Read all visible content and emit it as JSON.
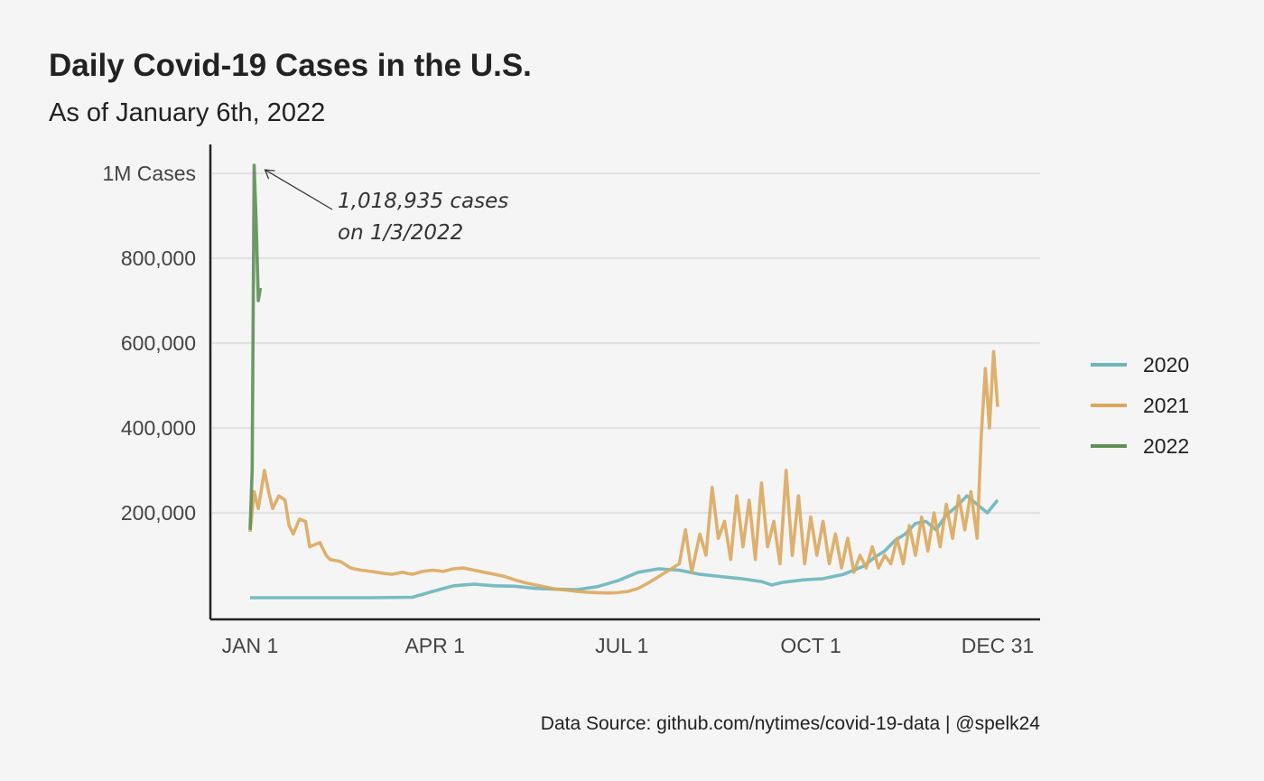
{
  "chart_data": {
    "type": "line",
    "title": "Daily Covid-19 Cases in the U.S.",
    "subtitle": "As of January 6th, 2022",
    "caption": "Data Source: github.com/nytimes/covid-19-data | @spelk24",
    "xlabel": "",
    "ylabel": "",
    "x_ticks": [
      {
        "day": 1,
        "label": "JAN 1"
      },
      {
        "day": 91,
        "label": "APR 1"
      },
      {
        "day": 182,
        "label": "JUL 1"
      },
      {
        "day": 274,
        "label": "OCT 1"
      },
      {
        "day": 365,
        "label": "DEC 31"
      }
    ],
    "y_ticks": [
      {
        "value": 200000,
        "label": "200,000"
      },
      {
        "value": 400000,
        "label": "400,000"
      },
      {
        "value": 600000,
        "label": "600,000"
      },
      {
        "value": 800000,
        "label": "800,000"
      },
      {
        "value": 1000000,
        "label": "1M Cases"
      }
    ],
    "xlim": [
      1,
      365
    ],
    "ylim": [
      0,
      1050000
    ],
    "grid": "horizontal",
    "legend_position": "right",
    "series": [
      {
        "name": "2020",
        "color": "#6bb5bd",
        "points": [
          [
            1,
            0
          ],
          [
            30,
            0
          ],
          [
            60,
            0
          ],
          [
            80,
            1000
          ],
          [
            90,
            15000
          ],
          [
            100,
            28000
          ],
          [
            110,
            32000
          ],
          [
            120,
            28000
          ],
          [
            130,
            27000
          ],
          [
            140,
            22000
          ],
          [
            150,
            20000
          ],
          [
            160,
            19000
          ],
          [
            170,
            26000
          ],
          [
            180,
            40000
          ],
          [
            190,
            60000
          ],
          [
            200,
            68000
          ],
          [
            210,
            65000
          ],
          [
            220,
            55000
          ],
          [
            230,
            50000
          ],
          [
            240,
            45000
          ],
          [
            250,
            38000
          ],
          [
            255,
            30000
          ],
          [
            260,
            36000
          ],
          [
            270,
            42000
          ],
          [
            280,
            45000
          ],
          [
            290,
            55000
          ],
          [
            300,
            75000
          ],
          [
            305,
            95000
          ],
          [
            310,
            110000
          ],
          [
            315,
            135000
          ],
          [
            320,
            150000
          ],
          [
            325,
            175000
          ],
          [
            330,
            180000
          ],
          [
            335,
            160000
          ],
          [
            340,
            195000
          ],
          [
            345,
            215000
          ],
          [
            350,
            240000
          ],
          [
            355,
            220000
          ],
          [
            360,
            200000
          ],
          [
            365,
            230000
          ]
        ]
      },
      {
        "name": "2021",
        "color": "#dba85e",
        "points": [
          [
            1,
            155000
          ],
          [
            3,
            250000
          ],
          [
            5,
            210000
          ],
          [
            8,
            300000
          ],
          [
            10,
            250000
          ],
          [
            12,
            210000
          ],
          [
            15,
            240000
          ],
          [
            18,
            230000
          ],
          [
            20,
            170000
          ],
          [
            22,
            150000
          ],
          [
            25,
            185000
          ],
          [
            28,
            180000
          ],
          [
            30,
            120000
          ],
          [
            35,
            130000
          ],
          [
            38,
            100000
          ],
          [
            40,
            90000
          ],
          [
            45,
            85000
          ],
          [
            50,
            70000
          ],
          [
            55,
            65000
          ],
          [
            60,
            62000
          ],
          [
            65,
            58000
          ],
          [
            70,
            55000
          ],
          [
            75,
            60000
          ],
          [
            80,
            55000
          ],
          [
            85,
            62000
          ],
          [
            90,
            65000
          ],
          [
            95,
            62000
          ],
          [
            100,
            68000
          ],
          [
            105,
            70000
          ],
          [
            110,
            65000
          ],
          [
            115,
            60000
          ],
          [
            120,
            55000
          ],
          [
            125,
            50000
          ],
          [
            130,
            42000
          ],
          [
            135,
            35000
          ],
          [
            140,
            30000
          ],
          [
            145,
            25000
          ],
          [
            150,
            20000
          ],
          [
            155,
            18000
          ],
          [
            160,
            15000
          ],
          [
            165,
            13000
          ],
          [
            170,
            12000
          ],
          [
            175,
            11000
          ],
          [
            180,
            12000
          ],
          [
            185,
            15000
          ],
          [
            190,
            22000
          ],
          [
            195,
            35000
          ],
          [
            200,
            50000
          ],
          [
            205,
            65000
          ],
          [
            210,
            80000
          ],
          [
            213,
            160000
          ],
          [
            216,
            60000
          ],
          [
            220,
            150000
          ],
          [
            223,
            100000
          ],
          [
            226,
            260000
          ],
          [
            229,
            140000
          ],
          [
            232,
            180000
          ],
          [
            235,
            90000
          ],
          [
            238,
            240000
          ],
          [
            241,
            120000
          ],
          [
            244,
            230000
          ],
          [
            247,
            90000
          ],
          [
            250,
            270000
          ],
          [
            253,
            120000
          ],
          [
            256,
            180000
          ],
          [
            259,
            80000
          ],
          [
            262,
            300000
          ],
          [
            265,
            100000
          ],
          [
            268,
            240000
          ],
          [
            271,
            80000
          ],
          [
            274,
            190000
          ],
          [
            277,
            100000
          ],
          [
            280,
            180000
          ],
          [
            283,
            80000
          ],
          [
            286,
            150000
          ],
          [
            289,
            70000
          ],
          [
            292,
            140000
          ],
          [
            295,
            60000
          ],
          [
            298,
            100000
          ],
          [
            301,
            70000
          ],
          [
            304,
            120000
          ],
          [
            307,
            70000
          ],
          [
            310,
            100000
          ],
          [
            313,
            80000
          ],
          [
            316,
            140000
          ],
          [
            319,
            80000
          ],
          [
            322,
            170000
          ],
          [
            325,
            100000
          ],
          [
            328,
            190000
          ],
          [
            331,
            110000
          ],
          [
            334,
            200000
          ],
          [
            337,
            120000
          ],
          [
            340,
            220000
          ],
          [
            343,
            140000
          ],
          [
            346,
            240000
          ],
          [
            349,
            160000
          ],
          [
            352,
            250000
          ],
          [
            355,
            140000
          ],
          [
            357,
            380000
          ],
          [
            359,
            540000
          ],
          [
            361,
            400000
          ],
          [
            363,
            580000
          ],
          [
            365,
            450000
          ]
        ]
      },
      {
        "name": "2022",
        "color": "#5e8f55",
        "points": [
          [
            1,
            160000
          ],
          [
            2,
            300000
          ],
          [
            3,
            1018935
          ],
          [
            4,
            880000
          ],
          [
            5,
            700000
          ],
          [
            6,
            730000
          ]
        ]
      }
    ],
    "annotations": [
      {
        "text_line1": "1,018,935 cases",
        "text_line2": "on 1/3/2022",
        "target": [
          3,
          1018935
        ]
      }
    ]
  }
}
